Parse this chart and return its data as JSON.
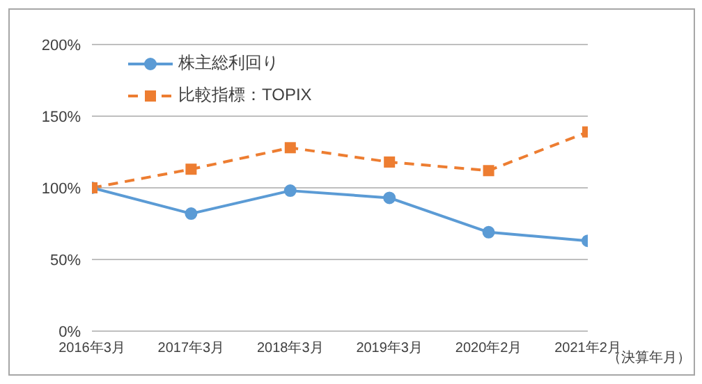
{
  "chart_data": {
    "type": "line",
    "categories": [
      "2016年3月",
      "2017年3月",
      "2018年3月",
      "2019年3月",
      "2020年2月",
      "2021年2月"
    ],
    "xlabel": "（決算年月）",
    "series": [
      {
        "name": "株主総利回り",
        "color": "#5b9bd5",
        "values": [
          100,
          82,
          98,
          93,
          69,
          63
        ],
        "marker": "circle",
        "line_style": "solid"
      },
      {
        "name": "比較指標：TOPIX",
        "color": "#ed7d31",
        "values": [
          100,
          113,
          128,
          118,
          112,
          139
        ],
        "marker": "square",
        "line_style": "dashed"
      }
    ],
    "ylim": [
      0,
      200
    ],
    "yticks": [
      {
        "value": 0,
        "label": "0%"
      },
      {
        "value": 50,
        "label": "50%"
      },
      {
        "value": 100,
        "label": "100%"
      },
      {
        "value": 150,
        "label": "150%"
      },
      {
        "value": 200,
        "label": "200%"
      }
    ],
    "grid": "y",
    "legend": "top left"
  }
}
